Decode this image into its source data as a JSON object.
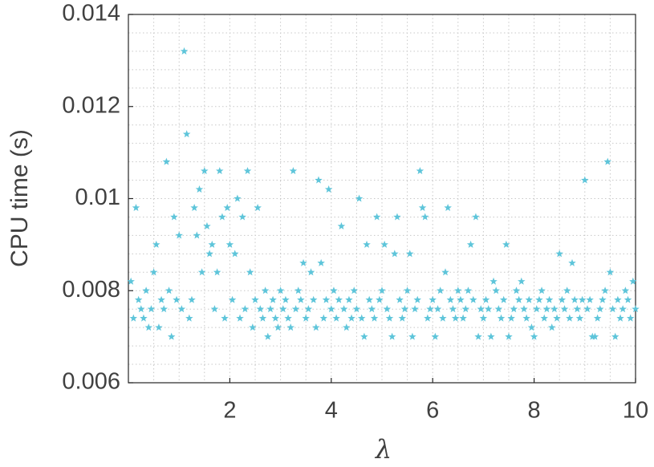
{
  "chart_data": {
    "type": "scatter",
    "x_label": "λ",
    "y_label": "CPU time (s)",
    "xlim": [
      0,
      10
    ],
    "xticks": [
      2,
      4,
      6,
      8,
      10
    ],
    "ylim": [
      0.006,
      0.014
    ],
    "yticks": [
      0.006,
      0.008,
      0.01,
      0.012,
      0.014
    ],
    "grid": true,
    "minor_grid": true,
    "marker": "star",
    "series": [
      {
        "color": "#5ec5da",
        "x": [
          0.05,
          0.1,
          0.15,
          0.2,
          0.25,
          0.3,
          0.35,
          0.4,
          0.45,
          0.5,
          0.55,
          0.6,
          0.65,
          0.7,
          0.75,
          0.8,
          0.85,
          0.9,
          0.95,
          1.0,
          1.05,
          1.1,
          1.15,
          1.2,
          1.25,
          1.3,
          1.35,
          1.4,
          1.45,
          1.5,
          1.55,
          1.6,
          1.65,
          1.7,
          1.75,
          1.8,
          1.85,
          1.9,
          1.95,
          2.0,
          2.05,
          2.1,
          2.15,
          2.2,
          2.25,
          2.3,
          2.35,
          2.4,
          2.45,
          2.5,
          2.55,
          2.6,
          2.65,
          2.7,
          2.75,
          2.8,
          2.85,
          2.9,
          2.95,
          3.0,
          3.05,
          3.1,
          3.15,
          3.2,
          3.25,
          3.3,
          3.35,
          3.4,
          3.45,
          3.5,
          3.55,
          3.6,
          3.65,
          3.7,
          3.75,
          3.8,
          3.85,
          3.9,
          3.95,
          4.0,
          4.05,
          4.1,
          4.15,
          4.2,
          4.25,
          4.3,
          4.35,
          4.4,
          4.45,
          4.5,
          4.55,
          4.6,
          4.65,
          4.7,
          4.75,
          4.8,
          4.85,
          4.9,
          4.95,
          5.0,
          5.05,
          5.1,
          5.15,
          5.2,
          5.25,
          5.3,
          5.35,
          5.4,
          5.45,
          5.5,
          5.55,
          5.6,
          5.65,
          5.7,
          5.75,
          5.8,
          5.85,
          5.9,
          5.95,
          6.0,
          6.05,
          6.1,
          6.15,
          6.2,
          6.25,
          6.3,
          6.35,
          6.4,
          6.45,
          6.5,
          6.55,
          6.6,
          6.65,
          6.7,
          6.75,
          6.8,
          6.85,
          6.9,
          6.95,
          7.0,
          7.05,
          7.1,
          7.15,
          7.2,
          7.25,
          7.3,
          7.35,
          7.4,
          7.45,
          7.5,
          7.55,
          7.6,
          7.65,
          7.7,
          7.75,
          7.8,
          7.85,
          7.9,
          7.95,
          8.0,
          8.05,
          8.1,
          8.15,
          8.2,
          8.25,
          8.3,
          8.35,
          8.4,
          8.45,
          8.5,
          8.55,
          8.6,
          8.65,
          8.7,
          8.75,
          8.8,
          8.85,
          8.9,
          8.95,
          9.0,
          9.05,
          9.1,
          9.15,
          9.2,
          9.25,
          9.3,
          9.35,
          9.4,
          9.45,
          9.5,
          9.55,
          9.6,
          9.65,
          9.7,
          9.75,
          9.8,
          9.85,
          9.9,
          9.95,
          10.0
        ],
        "values": [
          0.0082,
          0.0074,
          0.0098,
          0.0078,
          0.0076,
          0.0074,
          0.008,
          0.0072,
          0.0076,
          0.0084,
          0.009,
          0.0072,
          0.0078,
          0.0076,
          0.0108,
          0.008,
          0.007,
          0.0096,
          0.0078,
          0.0092,
          0.0076,
          0.0132,
          0.0114,
          0.0074,
          0.0078,
          0.0098,
          0.0092,
          0.0102,
          0.0084,
          0.0106,
          0.0094,
          0.0088,
          0.009,
          0.0076,
          0.0084,
          0.0106,
          0.0096,
          0.0074,
          0.0098,
          0.009,
          0.0078,
          0.0088,
          0.01,
          0.0074,
          0.0096,
          0.0076,
          0.0106,
          0.0084,
          0.0072,
          0.0078,
          0.0098,
          0.0076,
          0.0074,
          0.008,
          0.007,
          0.0076,
          0.0078,
          0.0074,
          0.0072,
          0.008,
          0.0076,
          0.0078,
          0.0074,
          0.0072,
          0.0106,
          0.0076,
          0.008,
          0.0078,
          0.0086,
          0.0074,
          0.0076,
          0.0084,
          0.0078,
          0.0072,
          0.0104,
          0.0086,
          0.0074,
          0.0078,
          0.0102,
          0.0076,
          0.008,
          0.0074,
          0.0078,
          0.0094,
          0.0076,
          0.0072,
          0.0078,
          0.0074,
          0.008,
          0.0076,
          0.01,
          0.0074,
          0.007,
          0.009,
          0.0078,
          0.0076,
          0.0074,
          0.0096,
          0.0078,
          0.008,
          0.009,
          0.0076,
          0.0074,
          0.007,
          0.0088,
          0.0096,
          0.0078,
          0.0074,
          0.0076,
          0.008,
          0.0088,
          0.007,
          0.0076,
          0.0078,
          0.0106,
          0.0098,
          0.0096,
          0.0074,
          0.0076,
          0.0078,
          0.007,
          0.0076,
          0.008,
          0.0074,
          0.0084,
          0.0098,
          0.0078,
          0.0076,
          0.0074,
          0.008,
          0.0078,
          0.0074,
          0.0076,
          0.008,
          0.009,
          0.0078,
          0.0096,
          0.007,
          0.0076,
          0.0074,
          0.0078,
          0.0076,
          0.007,
          0.0082,
          0.008,
          0.0076,
          0.0074,
          0.0078,
          0.009,
          0.007,
          0.0074,
          0.0076,
          0.008,
          0.0078,
          0.0082,
          0.0076,
          0.0074,
          0.0078,
          0.0072,
          0.007,
          0.0076,
          0.0078,
          0.008,
          0.0074,
          0.0076,
          0.0078,
          0.0072,
          0.0076,
          0.0074,
          0.0088,
          0.0078,
          0.0076,
          0.008,
          0.0074,
          0.0086,
          0.0078,
          0.0076,
          0.0074,
          0.0078,
          0.0104,
          0.0076,
          0.0078,
          0.007,
          0.007,
          0.0074,
          0.0076,
          0.0078,
          0.008,
          0.0108,
          0.0084,
          0.0076,
          0.007,
          0.0078,
          0.0074,
          0.0076,
          0.008,
          0.0078,
          0.0074,
          0.0082,
          0.0076
        ]
      }
    ]
  }
}
